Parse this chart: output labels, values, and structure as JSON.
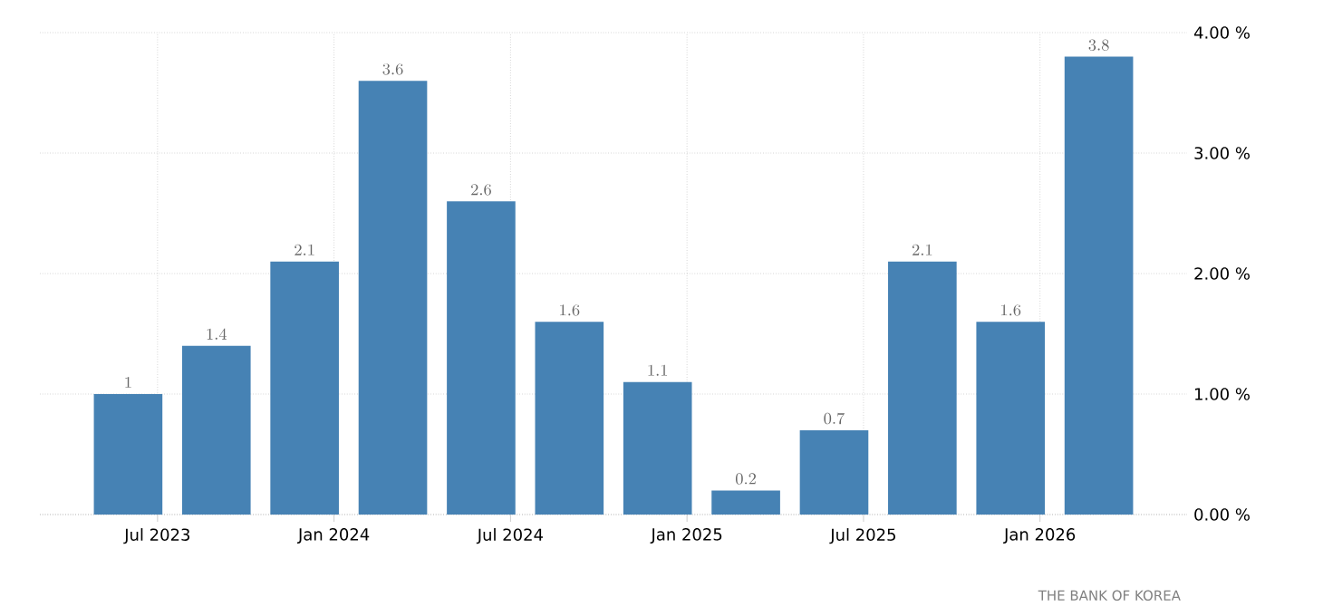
{
  "chart_data": {
    "type": "bar",
    "x": [
      "2023-06",
      "2023-09",
      "2023-12",
      "2024-03",
      "2024-06",
      "2024-09",
      "2024-12",
      "2025-03",
      "2025-06",
      "2025-09",
      "2025-12",
      "2026-03"
    ],
    "values": [
      1,
      1.4,
      2.1,
      3.6,
      2.6,
      1.6,
      1.1,
      0.2,
      0.7,
      2.1,
      1.6,
      3.8
    ],
    "color": "#4682b4",
    "xlim": [
      "2023-03",
      "2026-06"
    ],
    "xticks": [
      {
        "value": "2023-07",
        "label": "Jul 2023"
      },
      {
        "value": "2024-01",
        "label": "Jan 2024"
      },
      {
        "value": "2024-07",
        "label": "Jul 2024"
      },
      {
        "value": "2025-01",
        "label": "Jan 2025"
      },
      {
        "value": "2025-07",
        "label": "Jul 2025"
      },
      {
        "value": "2026-01",
        "label": "Jan 2026"
      }
    ],
    "ylim": [
      0,
      4
    ],
    "yticks": [
      {
        "value": 0,
        "label": "0.00 %"
      },
      {
        "value": 1,
        "label": "1.00 %"
      },
      {
        "value": 2,
        "label": "2.00 %"
      },
      {
        "value": 3,
        "label": "3.00 %"
      },
      {
        "value": 4,
        "label": "4.00 %"
      }
    ],
    "grid": true,
    "data_labels": true,
    "annotations": [
      "THE BANK OF KOREA"
    ]
  }
}
